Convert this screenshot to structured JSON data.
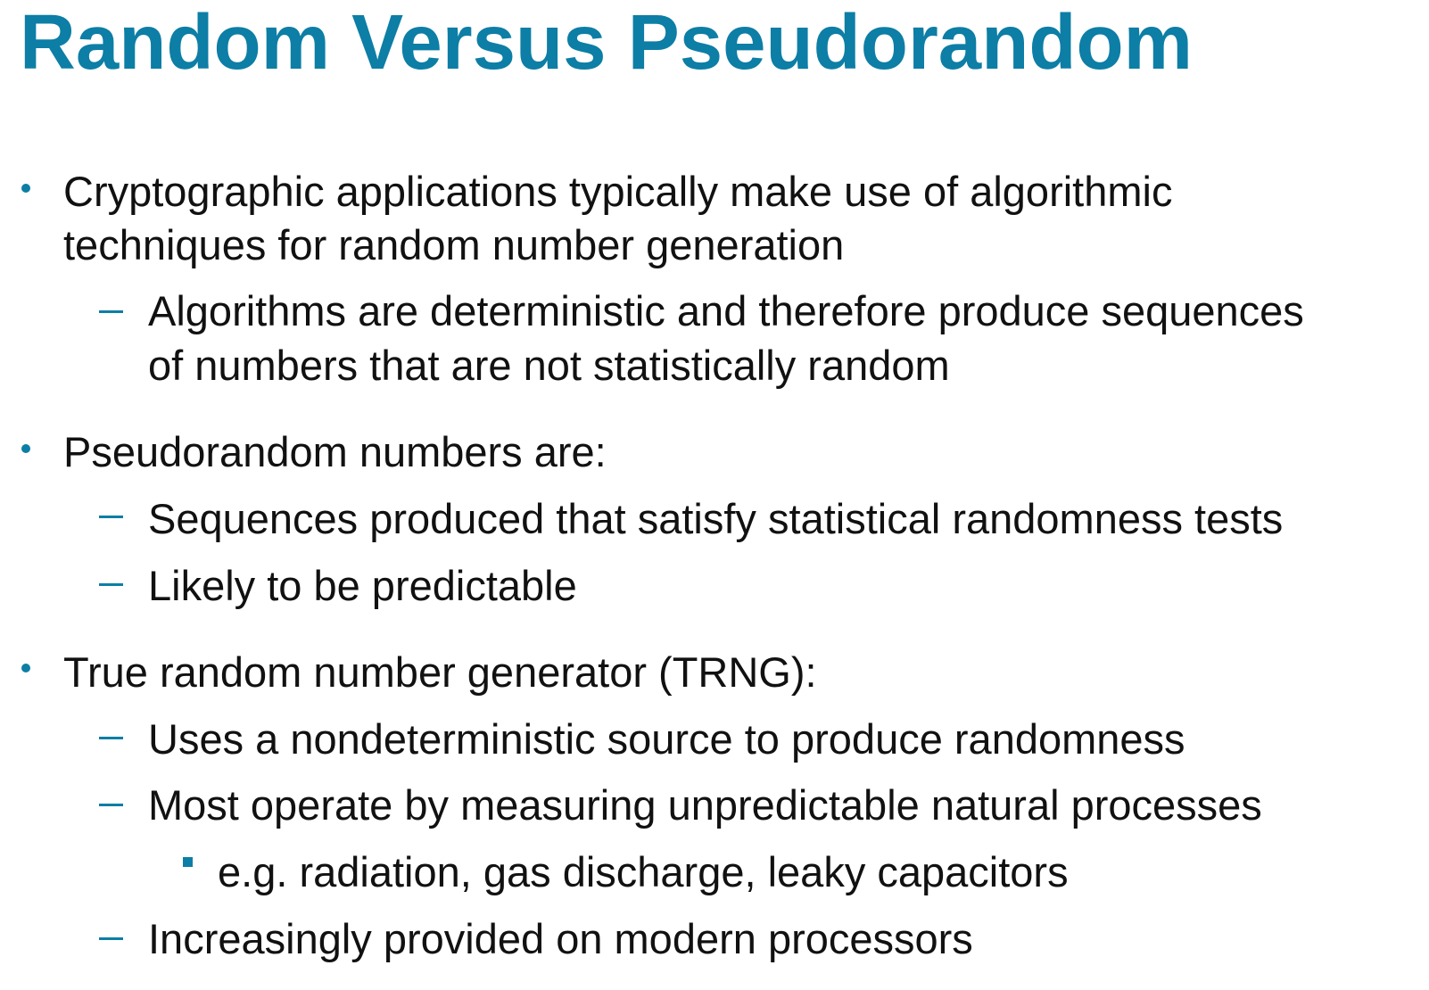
{
  "slide": {
    "title": "Random Versus Pseudorandom",
    "accent_color": "#0d7ea5",
    "bullets": [
      {
        "lines": [
          "Cryptographic applications typically make use of algorithmic",
          "techniques for random number generation"
        ],
        "sub": [
          {
            "lines": [
              "Algorithms are deterministic and therefore produce sequences",
              "of numbers that are not statistically random"
            ]
          }
        ]
      },
      {
        "lines": [
          "Pseudorandom numbers are:"
        ],
        "sub": [
          {
            "lines": [
              "Sequences produced that satisfy statistical randomness tests"
            ]
          },
          {
            "lines": [
              "Likely to be predictable"
            ]
          }
        ]
      },
      {
        "lines": [
          "True random number generator (TRNG):"
        ],
        "sub": [
          {
            "lines": [
              "Uses a nondeterministic source to produce randomness"
            ]
          },
          {
            "lines": [
              "Most operate by measuring unpredictable natural processes"
            ],
            "sub": [
              {
                "lines": [
                  "e.g. radiation, gas discharge, leaky capacitors"
                ]
              }
            ]
          },
          {
            "lines": [
              "Increasingly provided on modern processors"
            ]
          }
        ]
      }
    ]
  }
}
